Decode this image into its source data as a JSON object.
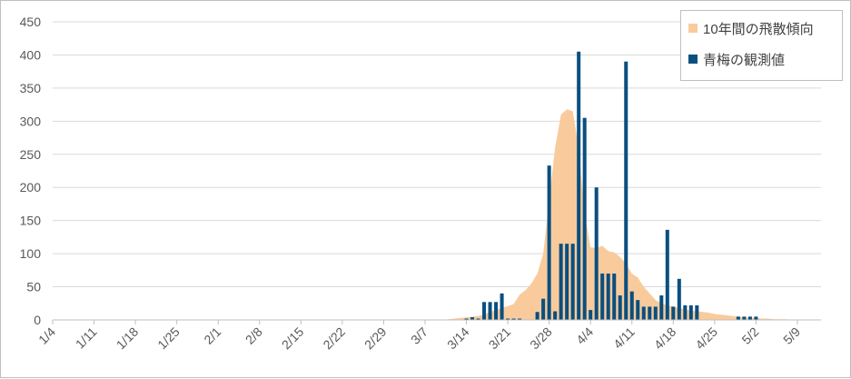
{
  "chart_data": {
    "type": "bar",
    "y_ticks": [
      0,
      50,
      100,
      150,
      200,
      250,
      300,
      350,
      400,
      450
    ],
    "ylim": [
      0,
      450
    ],
    "x_tick_labels": [
      "1/4",
      "1/11",
      "1/18",
      "1/25",
      "2/1",
      "2/8",
      "2/15",
      "2/22",
      "2/29",
      "3/7",
      "3/14",
      "3/21",
      "3/28",
      "4/4",
      "4/11",
      "4/18",
      "4/25",
      "5/2",
      "5/9"
    ],
    "x_tick_start_day": 4,
    "x_tick_interval_days": 7,
    "x_start_day": 4,
    "x_end_day": 134,
    "grid": "horizontal",
    "legend_position": "top-right",
    "colors": {
      "area": "#f9cb9c",
      "bar": "#0a4f80"
    },
    "series": [
      {
        "name": "10年間の飛散傾向",
        "type": "area",
        "x": [
          70,
          71,
          72,
          73,
          74,
          75,
          76,
          77,
          78,
          79,
          80,
          81,
          82,
          83,
          84,
          85,
          86,
          87,
          88,
          89,
          90,
          91,
          92,
          93,
          94,
          95,
          96,
          97,
          98,
          99,
          100,
          101,
          102,
          103,
          104,
          105,
          106,
          107,
          108,
          109,
          110,
          111,
          112,
          113,
          114,
          115,
          116,
          117,
          118,
          119,
          120,
          121,
          122,
          123,
          124,
          125,
          126,
          127,
          128,
          129
        ],
        "values": [
          0,
          1,
          2,
          3,
          4,
          5,
          6,
          8,
          12,
          15,
          18,
          21,
          24,
          38,
          45,
          55,
          70,
          100,
          180,
          260,
          310,
          318,
          315,
          260,
          160,
          110,
          108,
          112,
          104,
          102,
          95,
          85,
          70,
          64,
          50,
          40,
          30,
          25,
          22,
          20,
          18,
          16,
          14,
          13,
          12,
          11,
          9,
          8,
          7,
          6,
          5,
          4,
          3,
          3,
          2,
          2,
          1,
          1,
          1,
          0
        ]
      },
      {
        "name": "青梅の観測値",
        "type": "bar",
        "x": [
          74,
          75,
          76,
          77,
          78,
          79,
          80,
          81,
          82,
          83,
          84,
          85,
          86,
          87,
          88,
          89,
          90,
          91,
          92,
          93,
          94,
          95,
          96,
          97,
          98,
          99,
          100,
          101,
          102,
          103,
          104,
          105,
          106,
          107,
          108,
          109,
          110,
          111,
          112,
          113,
          114,
          115,
          116,
          117,
          118,
          119,
          120,
          121,
          122,
          123,
          124
        ],
        "values": [
          2,
          4,
          2,
          27,
          27,
          27,
          40,
          2,
          2,
          2,
          0,
          0,
          12,
          32,
          233,
          13,
          115,
          115,
          115,
          405,
          305,
          15,
          200,
          70,
          70,
          70,
          37,
          390,
          43,
          30,
          20,
          20,
          20,
          37,
          136,
          20,
          62,
          22,
          22,
          22,
          0,
          0,
          0,
          0,
          0,
          0,
          5,
          5,
          5,
          5,
          0
        ]
      }
    ]
  }
}
